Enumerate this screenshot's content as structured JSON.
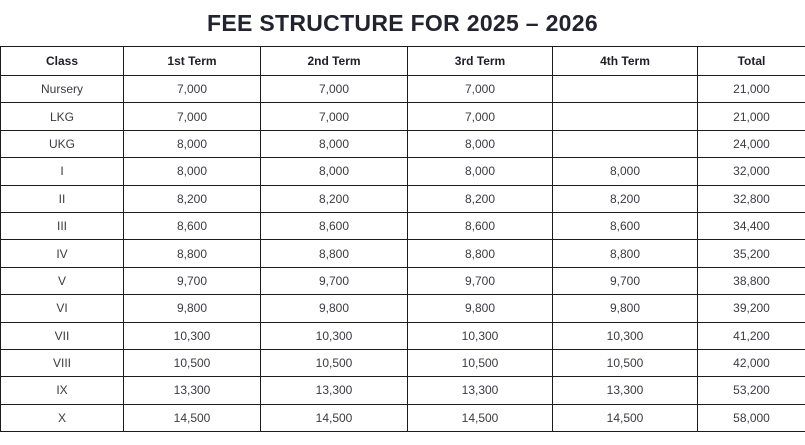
{
  "title": "FEE STRUCTURE FOR 2025 – 2026",
  "table": {
    "columns": [
      "Class",
      "1st Term",
      "2nd Term",
      "3rd Term",
      "4th Term",
      "Total"
    ],
    "rows": [
      [
        "Nursery",
        "7,000",
        "7,000",
        "7,000",
        "",
        "21,000"
      ],
      [
        "LKG",
        "7,000",
        "7,000",
        "7,000",
        "",
        "21,000"
      ],
      [
        "UKG",
        "8,000",
        "8,000",
        "8,000",
        "",
        "24,000"
      ],
      [
        "I",
        "8,000",
        "8,000",
        "8,000",
        "8,000",
        "32,000"
      ],
      [
        "II",
        "8,200",
        "8,200",
        "8,200",
        "8,200",
        "32,800"
      ],
      [
        "III",
        "8,600",
        "8,600",
        "8,600",
        "8,600",
        "34,400"
      ],
      [
        "IV",
        "8,800",
        "8,800",
        "8,800",
        "8,800",
        "35,200"
      ],
      [
        "V",
        "9,700",
        "9,700",
        "9,700",
        "9,700",
        "38,800"
      ],
      [
        "VI",
        "9,800",
        "9,800",
        "9,800",
        "9,800",
        "39,200"
      ],
      [
        "VII",
        "10,300",
        "10,300",
        "10,300",
        "10,300",
        "41,200"
      ],
      [
        "VIII",
        "10,500",
        "10,500",
        "10,500",
        "10,500",
        "42,000"
      ],
      [
        "IX",
        "13,300",
        "13,300",
        "13,300",
        "13,300",
        "53,200"
      ],
      [
        "X",
        "14,500",
        "14,500",
        "14,500",
        "14,500",
        "58,000"
      ]
    ]
  },
  "colors": {
    "background": "#ffffff",
    "border": "#1c1c1c",
    "title_text": "#23232f",
    "header_text": "#1e1e28",
    "cell_text": "#3a3a42"
  }
}
